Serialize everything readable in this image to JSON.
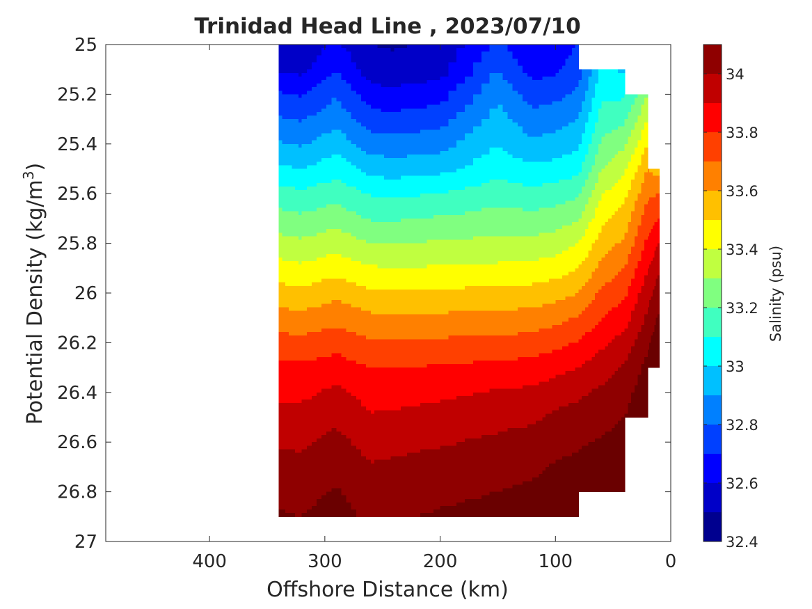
{
  "chart_data": {
    "type": "contour",
    "title": "Trinidad Head Line , 2023/07/10",
    "xlabel": "Offshore Distance (km)",
    "ylabel_main": "Potential Density (kg/m",
    "ylabel_sup": "3",
    "ylabel_close": ")",
    "xlim": [
      490,
      0
    ],
    "ylim": [
      25,
      27
    ],
    "x_reversed": true,
    "y_reversed": true,
    "xticks": [
      400,
      300,
      200,
      100,
      0
    ],
    "xtick_labels": [
      "400",
      "300",
      "200",
      "100",
      "0"
    ],
    "yticks": [
      25,
      25.2,
      25.4,
      25.6,
      25.8,
      26,
      26.2,
      26.4,
      26.6,
      26.8,
      27
    ],
    "ytick_labels": [
      "25",
      "25.2",
      "25.4",
      "25.6",
      "25.8",
      "26",
      "26.2",
      "26.4",
      "26.6",
      "26.8",
      "27"
    ],
    "data_extent": {
      "x_max_km": 340,
      "x_min_km": 10,
      "density_top": 25,
      "density_bottom": 26.9
    },
    "columns": [
      {
        "x": 340,
        "s": [
          32.55,
          32.59,
          32.71,
          32.81,
          32.91,
          33.02,
          33.14,
          33.24,
          33.34,
          33.44,
          33.54,
          33.64,
          33.74,
          33.83,
          33.88,
          33.93,
          33.99,
          34.04,
          34.08,
          34.11
        ]
      },
      {
        "x": 320,
        "s": [
          32.54,
          32.57,
          32.69,
          32.79,
          32.89,
          33.0,
          33.12,
          33.22,
          33.32,
          33.42,
          33.53,
          33.63,
          33.73,
          33.82,
          33.88,
          33.93,
          33.98,
          34.03,
          34.07,
          34.1
        ]
      },
      {
        "x": 290,
        "s": [
          32.62,
          32.7,
          32.79,
          32.87,
          32.96,
          33.06,
          33.16,
          33.26,
          33.36,
          33.46,
          33.57,
          33.67,
          33.76,
          33.85,
          33.92,
          33.98,
          34.03,
          34.07,
          34.11,
          34.14
        ]
      },
      {
        "x": 260,
        "s": [
          32.5,
          32.54,
          32.64,
          32.74,
          32.85,
          32.96,
          33.09,
          33.19,
          33.3,
          33.41,
          33.52,
          33.62,
          33.71,
          33.8,
          33.86,
          33.91,
          33.96,
          34.01,
          34.05,
          34.08
        ]
      },
      {
        "x": 240,
        "s": [
          32.49,
          32.53,
          32.63,
          32.73,
          32.84,
          32.95,
          33.08,
          33.19,
          33.3,
          33.4,
          33.52,
          33.62,
          33.71,
          33.8,
          33.86,
          33.92,
          33.97,
          34.02,
          34.06,
          34.09
        ]
      },
      {
        "x": 200,
        "s": [
          32.52,
          32.56,
          32.66,
          32.76,
          32.86,
          32.97,
          33.1,
          33.21,
          33.31,
          33.41,
          33.52,
          33.62,
          33.72,
          33.81,
          33.88,
          33.94,
          33.99,
          34.04,
          34.08,
          34.11
        ]
      },
      {
        "x": 150,
        "s": [
          32.73,
          32.8,
          32.88,
          32.94,
          33.0,
          33.06,
          33.16,
          33.24,
          33.33,
          33.42,
          33.53,
          33.63,
          33.73,
          33.83,
          33.91,
          33.97,
          34.02,
          34.06,
          34.1,
          34.13
        ]
      },
      {
        "x": 120,
        "s": [
          32.6,
          32.66,
          32.75,
          32.84,
          32.92,
          33.02,
          33.13,
          33.23,
          33.33,
          33.43,
          33.54,
          33.64,
          33.74,
          33.84,
          33.92,
          33.98,
          34.04,
          34.08,
          34.12,
          34.15
        ]
      },
      {
        "x": 100,
        "s": [
          32.64,
          32.68,
          32.77,
          32.86,
          32.94,
          33.04,
          33.15,
          33.25,
          33.35,
          33.45,
          33.56,
          33.67,
          33.77,
          33.87,
          33.95,
          34.02,
          34.07,
          34.11,
          34.14,
          34.16
        ]
      },
      {
        "x": 80,
        "s": [
          32.71,
          32.75,
          32.82,
          32.9,
          32.98,
          33.07,
          33.18,
          33.29,
          33.4,
          33.5,
          33.6,
          33.71,
          33.81,
          33.9,
          33.98,
          34.04,
          34.09,
          34.12,
          34.14,
          34.15
        ]
      },
      {
        "x": 60,
        "s": [
          null,
          33.02,
          33.08,
          33.14,
          33.22,
          33.3,
          33.39,
          33.47,
          33.55,
          33.63,
          33.72,
          33.8,
          33.88,
          33.95,
          34.02,
          34.07,
          34.11,
          34.13,
          34.14,
          null
        ]
      },
      {
        "x": 40,
        "s": [
          32.62,
          32.98,
          33.08,
          33.18,
          33.28,
          33.38,
          33.47,
          33.55,
          33.62,
          33.7,
          33.78,
          33.86,
          33.94,
          34.01,
          34.06,
          34.1,
          34.13,
          34.16,
          34.18,
          null
        ]
      },
      {
        "x": 20,
        "s": [
          null,
          null,
          33.3,
          33.4,
          33.5,
          33.6,
          33.68,
          33.75,
          33.82,
          33.89,
          33.96,
          34.02,
          34.08,
          34.13,
          34.17,
          34.2,
          null,
          null,
          null,
          null
        ]
      },
      {
        "x": 10,
        "s": [
          null,
          null,
          null,
          null,
          null,
          33.55,
          33.7,
          33.8,
          33.9,
          33.99,
          34.06,
          34.12,
          34.18,
          34.22,
          null,
          null,
          null,
          null,
          null,
          null
        ]
      }
    ],
    "density_levels": [
      25.0,
      25.1,
      25.2,
      25.3,
      25.4,
      25.5,
      25.6,
      25.7,
      25.8,
      25.9,
      26.0,
      26.1,
      26.2,
      26.3,
      26.4,
      26.5,
      26.6,
      26.7,
      26.8,
      26.9
    ],
    "colorbar": {
      "label": "Salinity (psu)",
      "min": 32.4,
      "max": 34.1,
      "ticks": [
        32.4,
        32.6,
        32.8,
        33,
        33.2,
        33.4,
        33.6,
        33.8,
        34
      ],
      "tick_labels": [
        "32.4",
        "32.6",
        "32.8",
        "33",
        "33.2",
        "33.4",
        "33.6",
        "33.8",
        "34"
      ],
      "levels": [
        32.4,
        32.5,
        32.6,
        32.7,
        32.8,
        32.9,
        33.0,
        33.1,
        33.2,
        33.3,
        33.4,
        33.5,
        33.6,
        33.7,
        33.8,
        33.9,
        34.0,
        34.1
      ],
      "colors": [
        "#00008f",
        "#0000c8",
        "#0000ff",
        "#0040ff",
        "#0080ff",
        "#00c0ff",
        "#00ffff",
        "#40ffc0",
        "#80ff80",
        "#c0ff40",
        "#ffff00",
        "#ffc000",
        "#ff8000",
        "#ff4000",
        "#ff0000",
        "#c00000",
        "#8f0000",
        "#6a0000"
      ]
    }
  }
}
